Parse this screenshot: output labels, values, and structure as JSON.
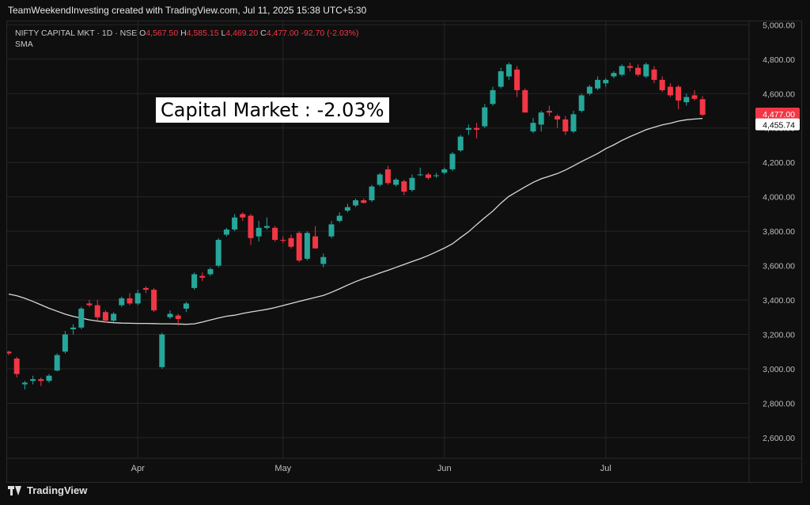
{
  "caption": "TeamWeekendInvesting created with TradingView.com, Jul 11, 2025 15:38 UTC+5:30",
  "legend": {
    "symbol": "NIFTY CAPITAL MKT · 1D · NSE",
    "o_label": "O",
    "o": "4,567.50",
    "h_label": "H",
    "h": "4,585.15",
    "l_label": "L",
    "l": "4,469.20",
    "c_label": "C",
    "c": "4,477.00",
    "change": "-92.70 (-2.03%)",
    "indicator": "SMA"
  },
  "annotation": "Capital Market : -2.03%",
  "footer": {
    "brand": "TradingView"
  },
  "colors": {
    "up": "#26a69a",
    "down": "#f23645",
    "sma": "#d9d9d9",
    "grid": "#262626"
  },
  "chart_data": {
    "type": "candlestick",
    "y_axis": {
      "ticks": [
        2600,
        2800,
        3000,
        3200,
        3400,
        3600,
        3800,
        4000,
        4200,
        4400,
        4600,
        4800,
        5000
      ],
      "tick_labels": [
        "2,600.00",
        "2,800.00",
        "3,000.00",
        "3,200.00",
        "3,400.00",
        "3,600.00",
        "3,800.00",
        "4,000.00",
        "4,200.00",
        "4,400.00",
        "4,600.00",
        "4,800.00",
        "5,000.00"
      ],
      "ylim": [
        2480,
        5020
      ]
    },
    "x_axis": {
      "labels": [
        {
          "text": "Apr",
          "index": 16
        },
        {
          "text": "May",
          "index": 34
        },
        {
          "text": "Jun",
          "index": 54
        },
        {
          "text": "Jul",
          "index": 74
        }
      ]
    },
    "last_price_label": "4,477.00",
    "sma_label": "4,455.74",
    "candles": [
      {
        "o": 3100,
        "h": 3105,
        "l": 3080,
        "c": 3090
      },
      {
        "o": 3060,
        "h": 3070,
        "l": 2950,
        "c": 2970
      },
      {
        "o": 2910,
        "h": 2930,
        "l": 2880,
        "c": 2920
      },
      {
        "o": 2930,
        "h": 2960,
        "l": 2910,
        "c": 2940
      },
      {
        "o": 2940,
        "h": 2950,
        "l": 2900,
        "c": 2930
      },
      {
        "o": 2930,
        "h": 2970,
        "l": 2920,
        "c": 2960
      },
      {
        "o": 2990,
        "h": 3090,
        "l": 2985,
        "c": 3080
      },
      {
        "o": 3100,
        "h": 3220,
        "l": 3090,
        "c": 3200
      },
      {
        "o": 3230,
        "h": 3260,
        "l": 3200,
        "c": 3240
      },
      {
        "o": 3240,
        "h": 3360,
        "l": 3230,
        "c": 3350
      },
      {
        "o": 3380,
        "h": 3400,
        "l": 3360,
        "c": 3370
      },
      {
        "o": 3370,
        "h": 3400,
        "l": 3280,
        "c": 3300
      },
      {
        "o": 3330,
        "h": 3340,
        "l": 3270,
        "c": 3280
      },
      {
        "o": 3280,
        "h": 3330,
        "l": 3270,
        "c": 3320
      },
      {
        "o": 3370,
        "h": 3420,
        "l": 3360,
        "c": 3410
      },
      {
        "o": 3410,
        "h": 3440,
        "l": 3370,
        "c": 3380
      },
      {
        "o": 3380,
        "h": 3460,
        "l": 3370,
        "c": 3440
      },
      {
        "o": 3470,
        "h": 3480,
        "l": 3440,
        "c": 3460
      },
      {
        "o": 3460,
        "h": 3470,
        "l": 3330,
        "c": 3340
      },
      {
        "o": 3010,
        "h": 3210,
        "l": 3000,
        "c": 3200
      },
      {
        "o": 3300,
        "h": 3340,
        "l": 3290,
        "c": 3320
      },
      {
        "o": 3310,
        "h": 3320,
        "l": 3250,
        "c": 3290
      },
      {
        "o": 3350,
        "h": 3390,
        "l": 3330,
        "c": 3380
      },
      {
        "o": 3470,
        "h": 3560,
        "l": 3460,
        "c": 3550
      },
      {
        "o": 3540,
        "h": 3560,
        "l": 3510,
        "c": 3530
      },
      {
        "o": 3550,
        "h": 3590,
        "l": 3540,
        "c": 3580
      },
      {
        "o": 3600,
        "h": 3760,
        "l": 3590,
        "c": 3750
      },
      {
        "o": 3780,
        "h": 3820,
        "l": 3770,
        "c": 3810
      },
      {
        "o": 3810,
        "h": 3900,
        "l": 3800,
        "c": 3880
      },
      {
        "o": 3900,
        "h": 3910,
        "l": 3860,
        "c": 3880
      },
      {
        "o": 3890,
        "h": 3900,
        "l": 3720,
        "c": 3760
      },
      {
        "o": 3770,
        "h": 3860,
        "l": 3740,
        "c": 3820
      },
      {
        "o": 3820,
        "h": 3880,
        "l": 3810,
        "c": 3830
      },
      {
        "o": 3820,
        "h": 3830,
        "l": 3740,
        "c": 3750
      },
      {
        "o": 3750,
        "h": 3770,
        "l": 3730,
        "c": 3745
      },
      {
        "o": 3760,
        "h": 3780,
        "l": 3700,
        "c": 3710
      },
      {
        "o": 3790,
        "h": 3800,
        "l": 3620,
        "c": 3630
      },
      {
        "o": 3640,
        "h": 3800,
        "l": 3630,
        "c": 3790
      },
      {
        "o": 3770,
        "h": 3830,
        "l": 3700,
        "c": 3700
      },
      {
        "o": 3610,
        "h": 3670,
        "l": 3590,
        "c": 3650
      },
      {
        "o": 3770,
        "h": 3860,
        "l": 3760,
        "c": 3840
      },
      {
        "o": 3860,
        "h": 3910,
        "l": 3850,
        "c": 3890
      },
      {
        "o": 3920,
        "h": 3960,
        "l": 3910,
        "c": 3940
      },
      {
        "o": 3950,
        "h": 3990,
        "l": 3940,
        "c": 3980
      },
      {
        "o": 3980,
        "h": 3990,
        "l": 3960,
        "c": 3965
      },
      {
        "o": 3980,
        "h": 4070,
        "l": 3970,
        "c": 4060
      },
      {
        "o": 4070,
        "h": 4140,
        "l": 4060,
        "c": 4130
      },
      {
        "o": 4160,
        "h": 4180,
        "l": 4070,
        "c": 4080
      },
      {
        "o": 4070,
        "h": 4110,
        "l": 4060,
        "c": 4100
      },
      {
        "o": 4090,
        "h": 4100,
        "l": 4010,
        "c": 4030
      },
      {
        "o": 4040,
        "h": 4130,
        "l": 4030,
        "c": 4110
      },
      {
        "o": 4130,
        "h": 4170,
        "l": 4120,
        "c": 4130
      },
      {
        "o": 4130,
        "h": 4140,
        "l": 4100,
        "c": 4110
      },
      {
        "o": 4120,
        "h": 4140,
        "l": 4110,
        "c": 4125
      },
      {
        "o": 4140,
        "h": 4170,
        "l": 4130,
        "c": 4160
      },
      {
        "o": 4160,
        "h": 4260,
        "l": 4150,
        "c": 4250
      },
      {
        "o": 4270,
        "h": 4360,
        "l": 4260,
        "c": 4350
      },
      {
        "o": 4390,
        "h": 4420,
        "l": 4360,
        "c": 4400
      },
      {
        "o": 4400,
        "h": 4430,
        "l": 4340,
        "c": 4390
      },
      {
        "o": 4410,
        "h": 4540,
        "l": 4400,
        "c": 4520
      },
      {
        "o": 4540,
        "h": 4640,
        "l": 4530,
        "c": 4620
      },
      {
        "o": 4640,
        "h": 4750,
        "l": 4630,
        "c": 4730
      },
      {
        "o": 4700,
        "h": 4780,
        "l": 4680,
        "c": 4770
      },
      {
        "o": 4740,
        "h": 4760,
        "l": 4580,
        "c": 4620
      },
      {
        "o": 4620,
        "h": 4630,
        "l": 4500,
        "c": 4490
      },
      {
        "o": 4380,
        "h": 4460,
        "l": 4370,
        "c": 4430
      },
      {
        "o": 4420,
        "h": 4500,
        "l": 4380,
        "c": 4490
      },
      {
        "o": 4500,
        "h": 4530,
        "l": 4470,
        "c": 4490
      },
      {
        "o": 4470,
        "h": 4480,
        "l": 4400,
        "c": 4450
      },
      {
        "o": 4450,
        "h": 4470,
        "l": 4360,
        "c": 4380
      },
      {
        "o": 4380,
        "h": 4500,
        "l": 4370,
        "c": 4480
      },
      {
        "o": 4500,
        "h": 4600,
        "l": 4490,
        "c": 4590
      },
      {
        "o": 4600,
        "h": 4650,
        "l": 4590,
        "c": 4640
      },
      {
        "o": 4630,
        "h": 4700,
        "l": 4620,
        "c": 4680
      },
      {
        "o": 4660,
        "h": 4690,
        "l": 4640,
        "c": 4680
      },
      {
        "o": 4700,
        "h": 4730,
        "l": 4690,
        "c": 4720
      },
      {
        "o": 4710,
        "h": 4770,
        "l": 4700,
        "c": 4760
      },
      {
        "o": 4760,
        "h": 4780,
        "l": 4730,
        "c": 4750
      },
      {
        "o": 4750,
        "h": 4770,
        "l": 4700,
        "c": 4710
      },
      {
        "o": 4700,
        "h": 4780,
        "l": 4690,
        "c": 4770
      },
      {
        "o": 4740,
        "h": 4760,
        "l": 4660,
        "c": 4680
      },
      {
        "o": 4680,
        "h": 4700,
        "l": 4610,
        "c": 4620
      },
      {
        "o": 4640,
        "h": 4660,
        "l": 4580,
        "c": 4590
      },
      {
        "o": 4640,
        "h": 4650,
        "l": 4510,
        "c": 4560
      },
      {
        "o": 4550,
        "h": 4600,
        "l": 4530,
        "c": 4580
      },
      {
        "o": 4590,
        "h": 4620,
        "l": 4560,
        "c": 4570
      },
      {
        "o": 4567.5,
        "h": 4585.15,
        "l": 4469.2,
        "c": 4477
      }
    ],
    "sma": [
      3435,
      3425,
      3410,
      3392,
      3372,
      3352,
      3335,
      3318,
      3305,
      3295,
      3285,
      3278,
      3272,
      3268,
      3266,
      3265,
      3264,
      3264,
      3263,
      3262,
      3262,
      3261,
      3259,
      3262,
      3272,
      3284,
      3296,
      3306,
      3312,
      3322,
      3331,
      3338,
      3346,
      3356,
      3368,
      3380,
      3392,
      3404,
      3415,
      3427,
      3445,
      3465,
      3487,
      3507,
      3525,
      3540,
      3557,
      3573,
      3590,
      3607,
      3624,
      3640,
      3659,
      3680,
      3702,
      3727,
      3763,
      3797,
      3839,
      3879,
      3917,
      3963,
      4003,
      4030,
      4058,
      4084,
      4105,
      4120,
      4135,
      4156,
      4180,
      4205,
      4228,
      4252,
      4280,
      4302,
      4328,
      4350,
      4370,
      4390,
      4405,
      4418,
      4428,
      4440,
      4448,
      4452,
      4455.74
    ]
  }
}
